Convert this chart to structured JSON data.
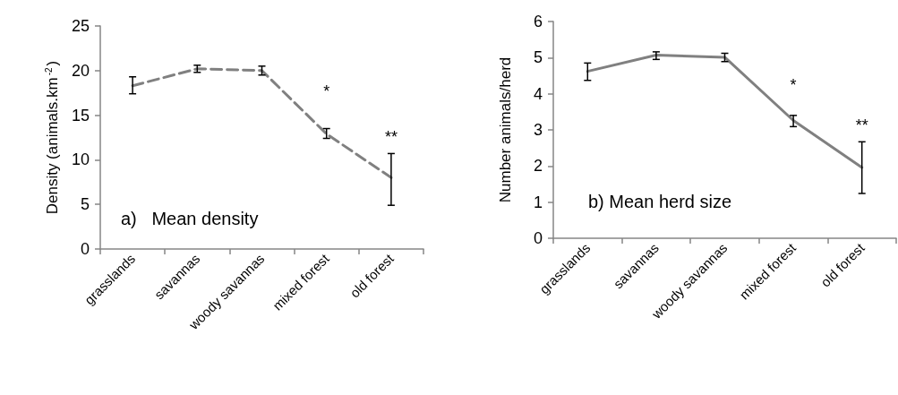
{
  "chart_data": [
    {
      "type": "line",
      "title": "a)   Mean density",
      "ylabel": "Density (animals.km$^{-2}$)",
      "categories": [
        "grasslands",
        "savannas",
        "woody savannas",
        "mixed forest",
        "old forest"
      ],
      "series": [
        {
          "color": "#808080",
          "values": [
            18.3,
            20.2,
            20.0,
            12.9,
            8.0
          ],
          "errors": [
            [
              17.4,
              19.3
            ],
            [
              19.8,
              20.6
            ],
            [
              19.5,
              20.5
            ],
            [
              12.4,
              13.5
            ],
            [
              4.9,
              10.7
            ]
          ]
        }
      ],
      "ylim": [
        0,
        25
      ],
      "yticks": [
        0,
        5,
        10,
        15,
        20,
        25
      ],
      "grid": false,
      "marker": "none",
      "line_style": "dashed",
      "annotations": [
        "*",
        "**"
      ]
    },
    {
      "type": "line",
      "title": "b) Mean herd size",
      "ylabel": "Number animals/herd",
      "categories": [
        "grasslands",
        "savannas",
        "woody savannas",
        "mixed forest",
        "old forest"
      ],
      "series": [
        {
          "color": "#808080",
          "values": [
            4.62,
            5.07,
            5.01,
            3.26,
            1.96
          ],
          "errors": [
            [
              4.37,
              4.85
            ],
            [
              4.95,
              5.16
            ],
            [
              4.89,
              5.12
            ],
            [
              3.09,
              3.4
            ],
            [
              1.24,
              2.67
            ]
          ]
        }
      ],
      "ylim": [
        0,
        6
      ],
      "yticks": [
        0,
        1,
        2,
        3,
        4,
        5,
        6
      ],
      "grid": false,
      "marker": "none",
      "line_style": "solid",
      "annotations": [
        "*",
        "**"
      ]
    }
  ]
}
